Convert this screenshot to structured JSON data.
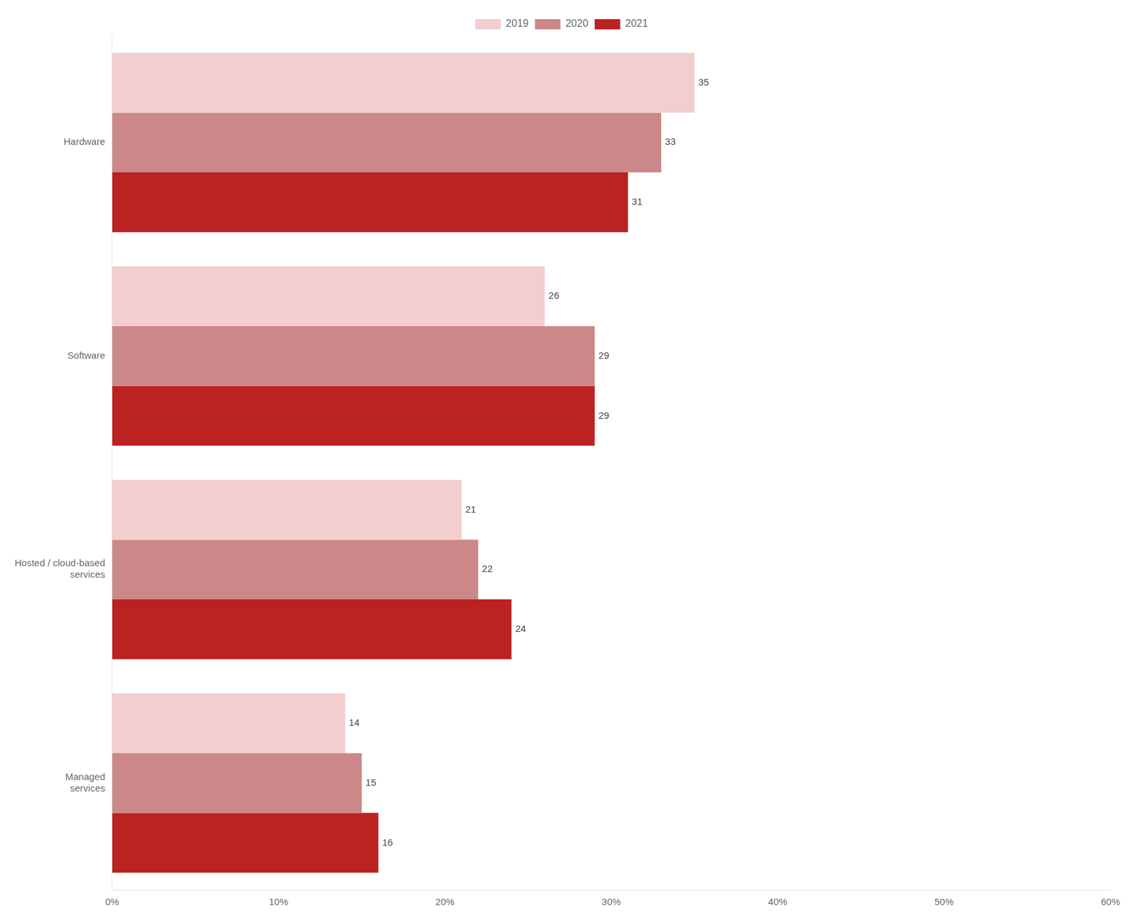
{
  "chart_data": {
    "type": "bar",
    "orientation": "horizontal",
    "categories": [
      "Hardware",
      "Software",
      "Hosted / cloud-based\nservices",
      "Managed\nservices"
    ],
    "series": [
      {
        "name": "2019",
        "color": "#f2cece",
        "values": [
          35,
          26,
          21,
          14
        ]
      },
      {
        "name": "2020",
        "color": "#cc8888",
        "values": [
          33,
          29,
          22,
          15
        ]
      },
      {
        "name": "2021",
        "color": "#bb2222",
        "values": [
          31,
          29,
          24,
          16
        ]
      }
    ],
    "xlim": [
      0,
      60
    ],
    "xticks": [
      {
        "value": 0,
        "label": "0%"
      },
      {
        "value": 10,
        "label": "10%"
      },
      {
        "value": 20,
        "label": "20%"
      },
      {
        "value": 30,
        "label": "30%"
      },
      {
        "value": 40,
        "label": "40%"
      },
      {
        "value": 50,
        "label": "50%"
      },
      {
        "value": 60,
        "label": "60%"
      }
    ],
    "grid": false,
    "legend": "top",
    "data_labels": true
  }
}
